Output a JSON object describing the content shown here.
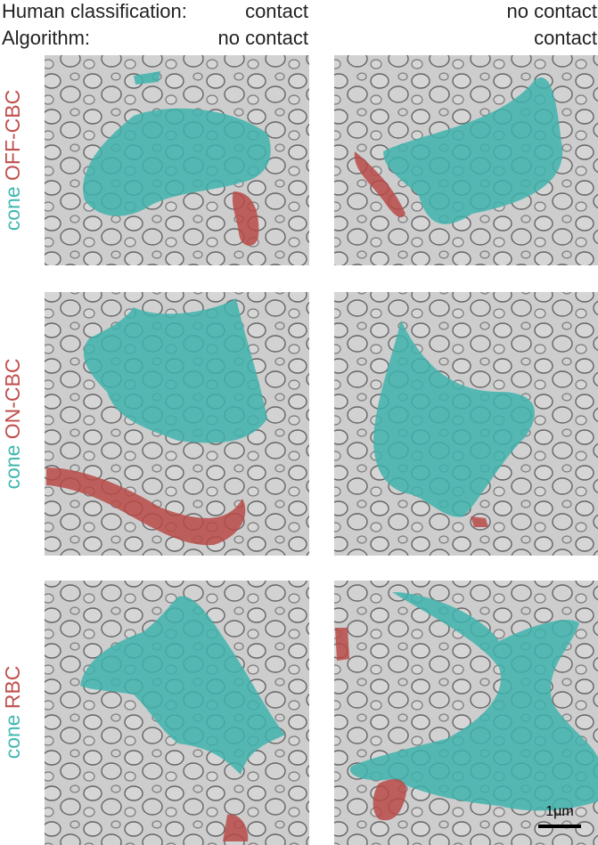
{
  "header": {
    "human_label": "Human classification:",
    "algorithm_label": "Algorithm:",
    "columns": [
      {
        "human": "contact",
        "algorithm": "no contact"
      },
      {
        "human": "no contact",
        "algorithm": "contact"
      }
    ]
  },
  "rows": [
    {
      "cone": "cone",
      "cell": "OFF-CBC"
    },
    {
      "cone": "cone",
      "cell": "ON-CBC"
    },
    {
      "cone": "cone",
      "cell": "RBC"
    }
  ],
  "scale_bar": "1μm"
}
